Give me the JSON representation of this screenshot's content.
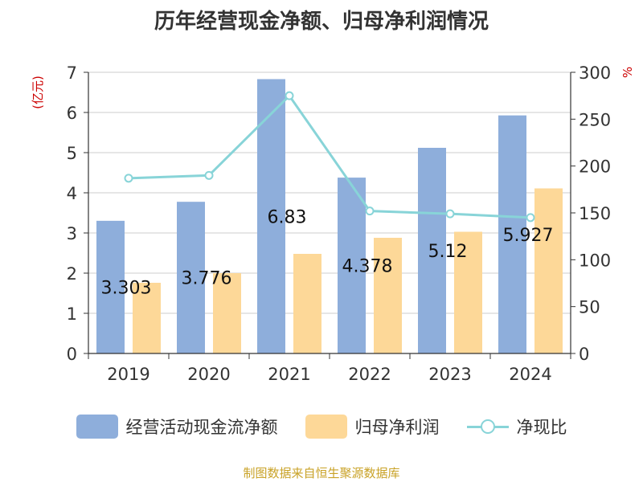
{
  "title": "历年经营现金净额、归母净利润情况",
  "left_unit": "(亿元)",
  "right_unit": "%",
  "source": "制图数据来自恒生聚源数据库",
  "colors": {
    "operating_cash": "#8eaedb",
    "net_profit": "#fdd898",
    "ratio": "#88d4d8",
    "axis": "#333333",
    "grid": "#cccccc",
    "unit_label": "#cc0000"
  },
  "chart_data": {
    "type": "bar",
    "title": "历年经营现金净额、归母净利润情况",
    "categories": [
      "2019",
      "2020",
      "2021",
      "2022",
      "2023",
      "2024"
    ],
    "ylabel": "(亿元)",
    "ylim": [
      0,
      7
    ],
    "yticks": [
      0,
      1,
      2,
      3,
      4,
      5,
      6,
      7
    ],
    "y2label": "%",
    "y2lim": [
      0,
      300
    ],
    "y2ticks": [
      0,
      50,
      100,
      150,
      200,
      250,
      300
    ],
    "series": [
      {
        "name": "经营活动现金流净额",
        "type": "bar",
        "axis": "left",
        "values": [
          3.303,
          3.776,
          6.83,
          4.378,
          5.12,
          5.927
        ],
        "labels": [
          "3.303",
          "3.776",
          "6.83",
          "4.378",
          "5.12",
          "5.927"
        ]
      },
      {
        "name": "归母净利润",
        "type": "bar",
        "axis": "left",
        "values": [
          1.76,
          2.0,
          2.48,
          2.88,
          3.03,
          4.11
        ]
      },
      {
        "name": "净现比",
        "type": "line",
        "axis": "right",
        "values": [
          187,
          190,
          275,
          152,
          149,
          145
        ]
      }
    ],
    "legend_position": "bottom",
    "grid": true
  }
}
